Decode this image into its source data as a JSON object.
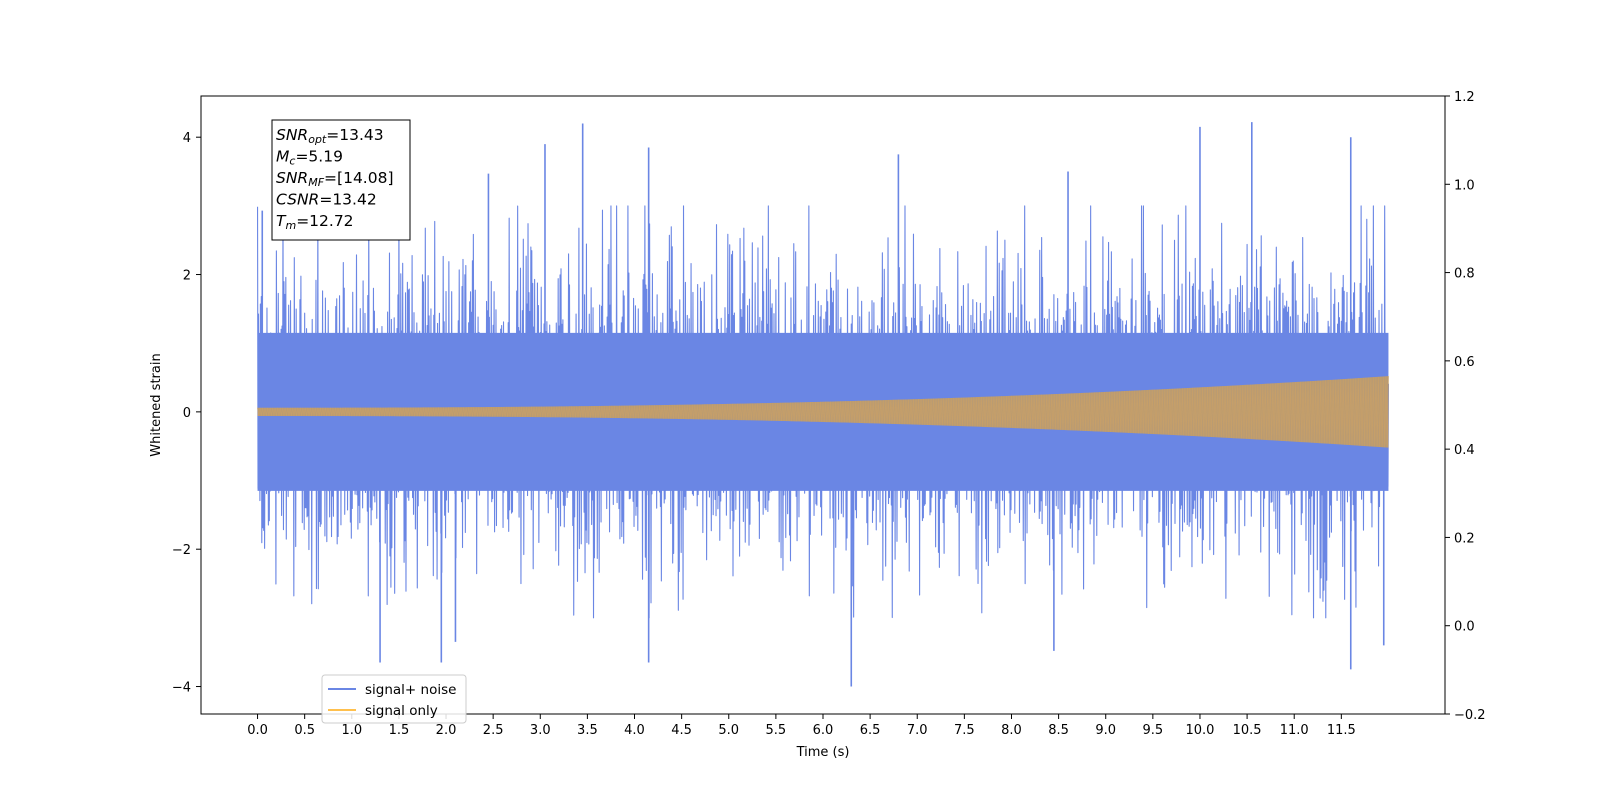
{
  "chart_data": {
    "type": "line",
    "xlabel": "Time (s)",
    "ylabel": "Whitened strain",
    "xlim": [
      -0.6,
      12.6
    ],
    "ylim": [
      -4.4,
      4.6
    ],
    "y2lim": [
      -0.2,
      1.2
    ],
    "grid": false,
    "x_ticks": [
      0.0,
      0.5,
      1.0,
      1.5,
      2.0,
      2.5,
      3.0,
      3.5,
      4.0,
      4.5,
      5.0,
      5.5,
      6.0,
      6.5,
      7.0,
      7.5,
      8.0,
      8.5,
      9.0,
      9.5,
      10.0,
      10.5,
      11.0,
      11.5
    ],
    "x_tick_labels": [
      "0.0",
      "0.5",
      "1.0",
      "1.5",
      "2.0",
      "2.5",
      "3.0",
      "3.5",
      "4.0",
      "4.5",
      "5.0",
      "5.5",
      "6.0",
      "6.5",
      "7.0",
      "7.5",
      "8.0",
      "8.5",
      "9.0",
      "9.5",
      "10.0",
      "10.5",
      "11.0",
      "11.5"
    ],
    "y_ticks": [
      -4,
      -2,
      0,
      2,
      4
    ],
    "y_tick_labels": [
      "−4",
      "−2",
      "0",
      "2",
      "4"
    ],
    "y2_ticks": [
      -0.2,
      0.0,
      0.2,
      0.4,
      0.6,
      0.8,
      1.0,
      1.2
    ],
    "y2_tick_labels": [
      "−0.2",
      "0.0",
      "0.2",
      "0.4",
      "0.6",
      "0.8",
      "1.0",
      "1.2"
    ],
    "series": [
      {
        "name": "signal+ noise",
        "color": "#6a86e4",
        "x_range": [
          0.0,
          12.0
        ],
        "typical_envelope": [
          -2.2,
          2.2
        ],
        "peaks": [
          {
            "x": 3.45,
            "y": 4.2
          },
          {
            "x": 10.55,
            "y": 4.22
          },
          {
            "x": 10.0,
            "y": 4.15
          },
          {
            "x": 11.6,
            "y": 4.0
          },
          {
            "x": 4.15,
            "y": 3.85
          },
          {
            "x": 3.05,
            "y": 3.9
          },
          {
            "x": 2.45,
            "y": 3.47
          },
          {
            "x": 6.8,
            "y": 3.75
          },
          {
            "x": 8.6,
            "y": 3.5
          },
          {
            "x": 0.05,
            "y": 2.93
          },
          {
            "x": 6.3,
            "y": -4.0
          },
          {
            "x": 11.6,
            "y": -3.75
          },
          {
            "x": 1.3,
            "y": -3.65
          },
          {
            "x": 1.95,
            "y": -3.65
          },
          {
            "x": 4.15,
            "y": -3.65
          },
          {
            "x": 11.95,
            "y": -3.4
          },
          {
            "x": 2.1,
            "y": -3.35
          },
          {
            "x": 8.45,
            "y": -3.48
          }
        ]
      },
      {
        "name": "signal only",
        "color": "#ffc04d",
        "x_range": [
          0.0,
          12.0
        ],
        "amplitude_start": 0.06,
        "amplitude_end": 0.52
      }
    ],
    "annotation": {
      "lines": [
        {
          "name": "SNR",
          "sub": "opt",
          "value": "=13.43"
        },
        {
          "name": "M",
          "sub": "c",
          "value": "=5.19"
        },
        {
          "name": "SNR",
          "sub": "MF",
          "value": "=[14.08]"
        },
        {
          "name": "CSNR",
          "sub": "",
          "value": "=13.42"
        },
        {
          "name": "T",
          "sub": "m",
          "value": "=12.72"
        }
      ]
    },
    "legend": {
      "location": "lower left",
      "entries": [
        "signal+ noise",
        "signal only"
      ]
    },
    "overlap_color": "#ba9b72"
  }
}
